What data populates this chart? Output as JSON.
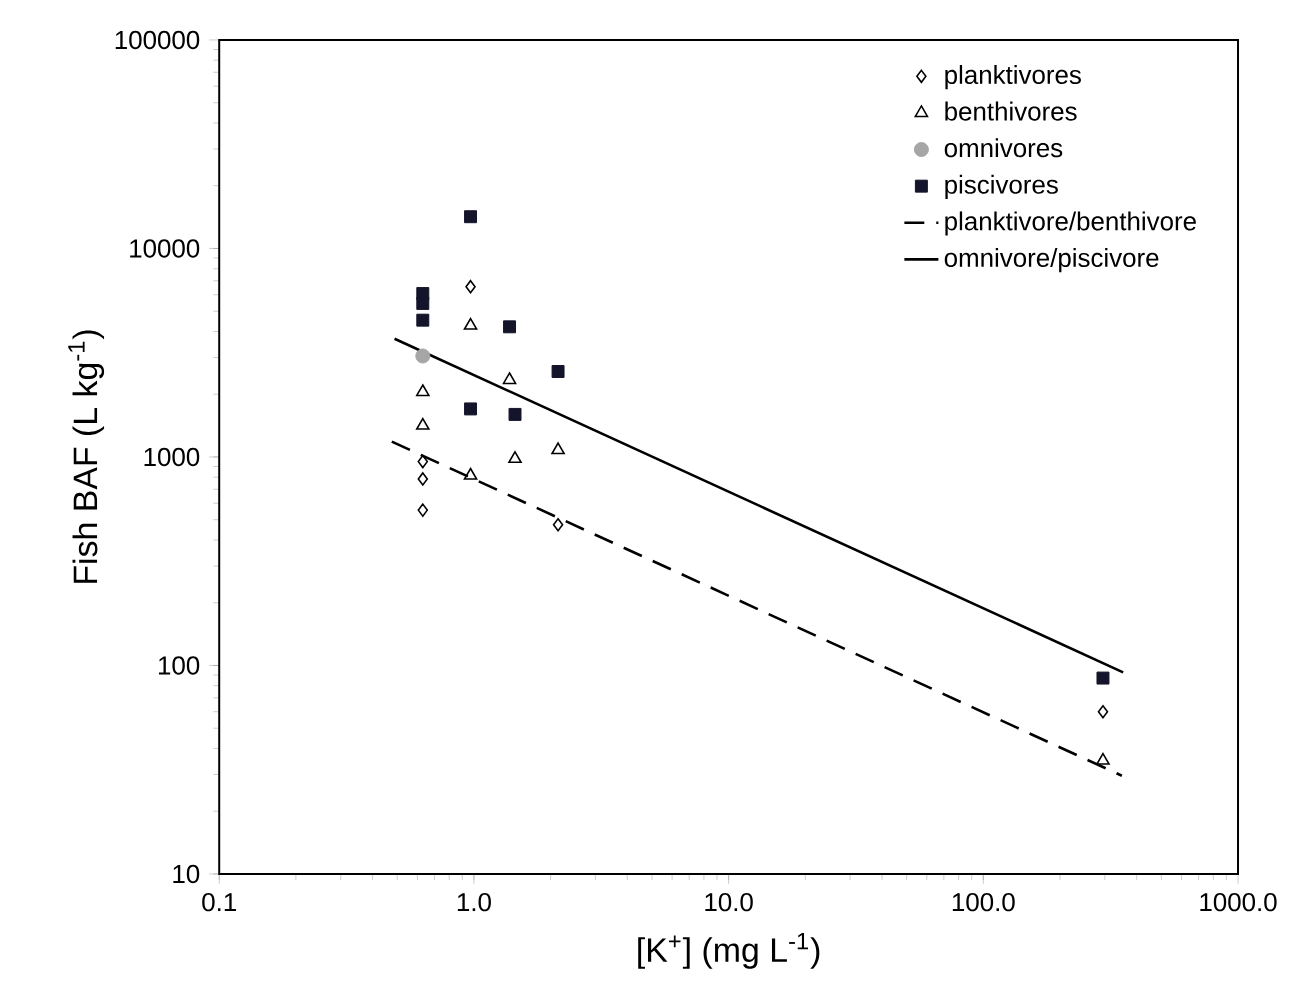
{
  "chart_data": {
    "type": "scatter",
    "xlabel": "[K$^{+}$]  (mg L$^{-1}$)",
    "ylabel": "Fish BAF  (L kg$^{-1}$)",
    "log": "xy",
    "xlim": [
      0.1,
      1000
    ],
    "ylim": [
      10,
      100000
    ],
    "xticks": [
      {
        "value": 0.1,
        "label": "0.1"
      },
      {
        "value": 1,
        "label": "1.0"
      },
      {
        "value": 10,
        "label": "10.0"
      },
      {
        "value": 100,
        "label": "100.0"
      },
      {
        "value": 1000,
        "label": "1000.0"
      }
    ],
    "yticks": [
      10,
      100,
      1000,
      10000,
      100000
    ],
    "legend": "top right",
    "grid": false,
    "series": [
      {
        "name": "planktivores",
        "marker": "diamond",
        "color": "#000000",
        "x": [
          0.63,
          0.63,
          0.63,
          0.97,
          2.14,
          295
        ],
        "values": [
          950,
          785,
          556,
          6560,
          473,
          60
        ]
      },
      {
        "name": "benthivores",
        "marker": "triangle",
        "color": "#000000",
        "x": [
          0.63,
          0.63,
          0.97,
          0.97,
          1.38,
          1.45,
          2.14,
          295
        ],
        "values": [
          2050,
          1415,
          4270,
          815,
          2340,
          980,
          1080,
          35
        ]
      },
      {
        "name": "omnivores",
        "marker": "circle",
        "color": "#a6a6a6",
        "x": [
          0.63
        ],
        "values": [
          3050
        ]
      },
      {
        "name": "piscivores",
        "marker": "square",
        "color": "#14142a",
        "x": [
          0.63,
          0.63,
          0.63,
          0.97,
          0.97,
          1.38,
          1.45,
          2.14,
          295
        ],
        "values": [
          6080,
          5450,
          4530,
          14200,
          1700,
          4210,
          1600,
          2570,
          87
        ]
      },
      {
        "name": "planktivore/benthivore",
        "type": "line",
        "line_style": "dashed",
        "marker": "none",
        "color": "#000000",
        "x": [
          0.476,
          350
        ],
        "values": [
          1185,
          29.6
        ]
      },
      {
        "name": "omnivore/piscivore",
        "type": "line",
        "line_style": "solid",
        "marker": "none",
        "color": "#000000",
        "x": [
          0.488,
          354
        ],
        "values": [
          3690,
          92.7
        ]
      }
    ]
  }
}
